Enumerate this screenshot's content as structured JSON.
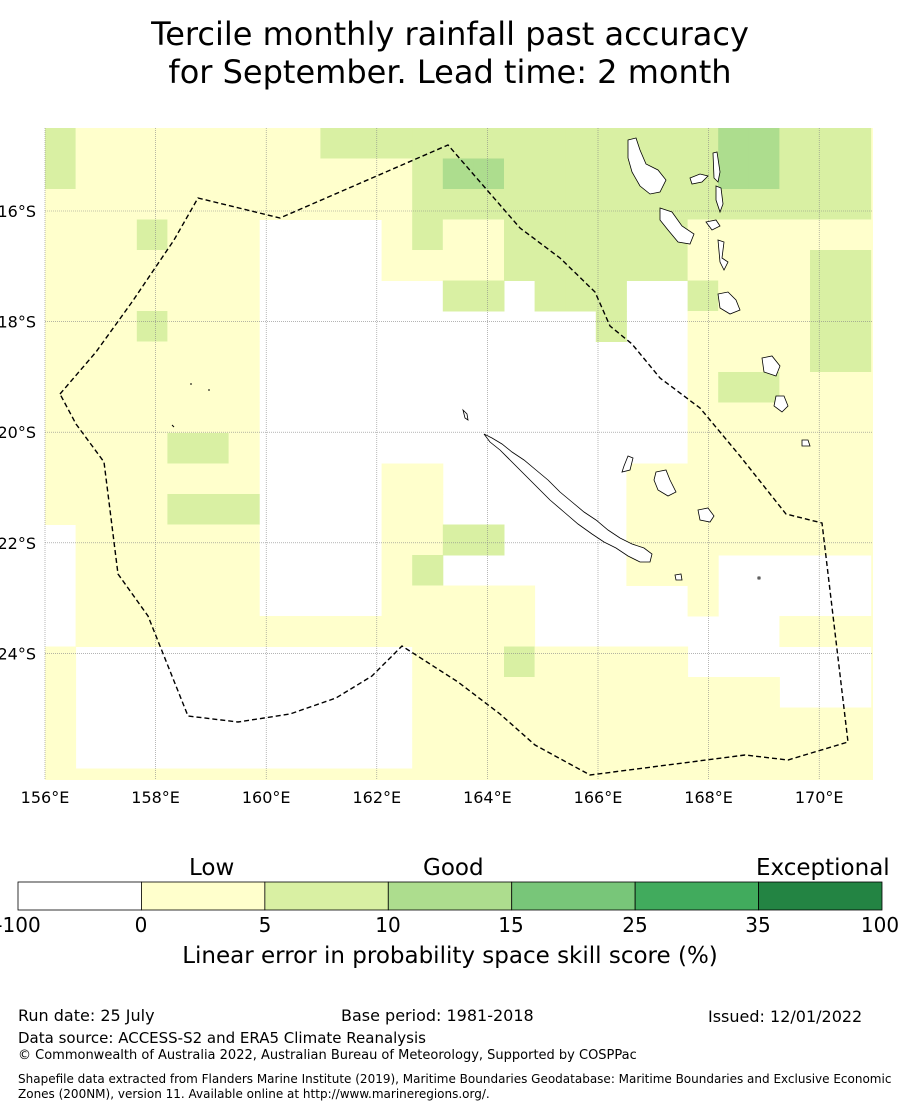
{
  "title": {
    "line1": "Tercile monthly rainfall past accuracy",
    "line2": "for September. Lead time: 2 month"
  },
  "map": {
    "region": "New Caledonia EEZ",
    "lat_ticks": [
      "16°S",
      "18°S",
      "20°S",
      "22°S",
      "24°S"
    ],
    "lon_ticks": [
      "156°E",
      "158°E",
      "160°E",
      "162°E",
      "164°E",
      "166°E",
      "168°E",
      "170°E"
    ],
    "lat_values": [
      -16,
      -18,
      -20,
      -22,
      -24
    ],
    "lon_values": [
      156,
      158,
      160,
      162,
      164,
      166,
      168,
      170
    ],
    "grid": true,
    "boundary": "dashed",
    "class_colors": [
      "#ffffff",
      "#ffffcc",
      "#d9f0a3",
      "#addd8e",
      "#78c679",
      "#41ab5d",
      "#238443"
    ]
  },
  "colorbar": {
    "categories": [
      "Low",
      "Good",
      "Exceptional"
    ],
    "ticks": [
      "-100",
      "0",
      "5",
      "10",
      "15",
      "25",
      "35",
      "100"
    ],
    "label": "Linear error in probability space skill score (%)"
  },
  "footer": {
    "run_date": "Run date: 25 July",
    "base_period": "Base period: 1981-2018",
    "issued": "Issued: 12/01/2022",
    "data_source": "Data source: ACCESS-S2 and ERA5 Climate Reanalysis",
    "copyright": "© Commonwealth of Australia 2022, Australian Bureau of Meteorology, Supported by COSPPac",
    "shapefile": "Shapefile data extracted from Flanders Marine Institute (2019), Maritime Boundaries Geodatabase: Maritime Boundaries and Exclusive Economic Zones (200NM), version 11. Available online at http://www.marineregions.org/."
  }
}
